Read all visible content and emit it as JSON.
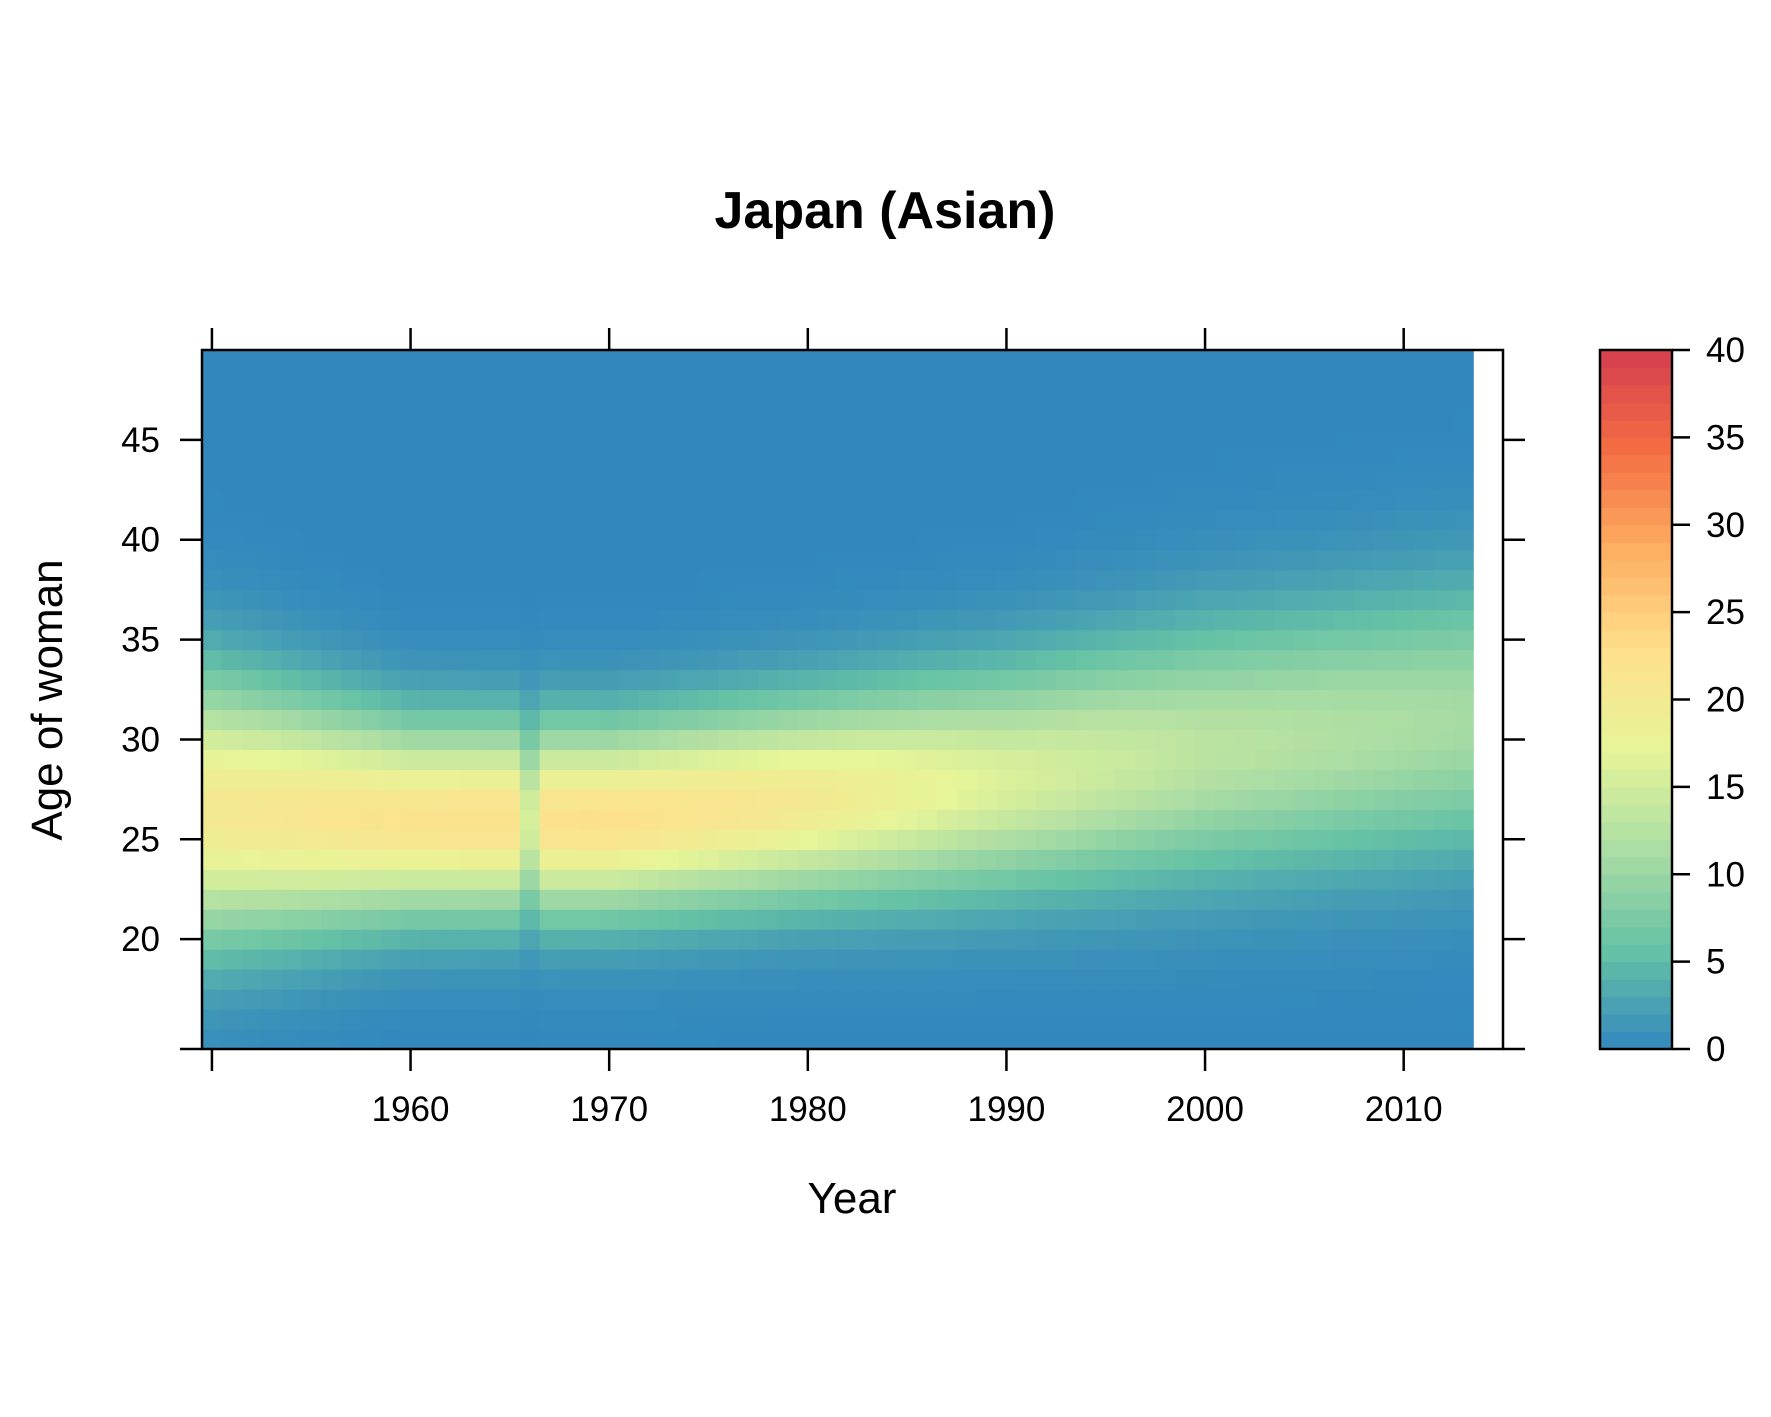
{
  "chart_data": {
    "type": "heatmap",
    "title": "Japan (Asian)",
    "xlabel": "Year",
    "ylabel": "Age of woman",
    "x_range": [
      1950,
      2013
    ],
    "y_range": [
      15,
      49
    ],
    "xlim": [
      1949.5,
      2015
    ],
    "ylim": [
      14.5,
      49.5
    ],
    "x_ticks": [
      1960,
      1970,
      1980,
      1990,
      2000,
      2010
    ],
    "y_ticks": [
      20,
      25,
      30,
      35,
      40,
      45
    ],
    "colorbar": {
      "range": [
        0,
        40
      ],
      "ticks": [
        0,
        5,
        10,
        15,
        20,
        25,
        30,
        35,
        40
      ],
      "colors": [
        "#3288bd",
        "#66c2a5",
        "#abdda4",
        "#e6f598",
        "#fee08b",
        "#fdae61",
        "#f46d43",
        "#d53e4f"
      ]
    },
    "colors": {
      "frame": "#000000",
      "background": "#ffffff"
    },
    "value_model": "age-specific fertility rate estimated from image; peak near age 25–27 in the 1960s–1970s at ~21–23, declining and shifting to later ages after 1990, with a narrow dip in 1966",
    "profile_periods": [
      {
        "year_start": 1950,
        "peak_age": 26.5,
        "peak_value": 20.5,
        "spread": 4.5
      },
      {
        "year_start": 1960,
        "peak_age": 26.0,
        "peak_value": 22.0,
        "spread": 3.3
      },
      {
        "year_start": 1970,
        "peak_age": 26.0,
        "peak_value": 22.5,
        "spread": 3.2
      },
      {
        "year_start": 1980,
        "peak_age": 27.0,
        "peak_value": 20.5,
        "spread": 3.4
      },
      {
        "year_start": 1990,
        "peak_age": 28.0,
        "peak_value": 16.0,
        "spread": 3.8
      },
      {
        "year_start": 2000,
        "peak_age": 29.5,
        "peak_value": 13.0,
        "spread": 4.3
      },
      {
        "year_start": 2013,
        "peak_age": 31.0,
        "peak_value": 11.0,
        "spread": 4.6
      }
    ],
    "anomalies": [
      {
        "year": 1966,
        "factor": 0.7
      }
    ]
  }
}
